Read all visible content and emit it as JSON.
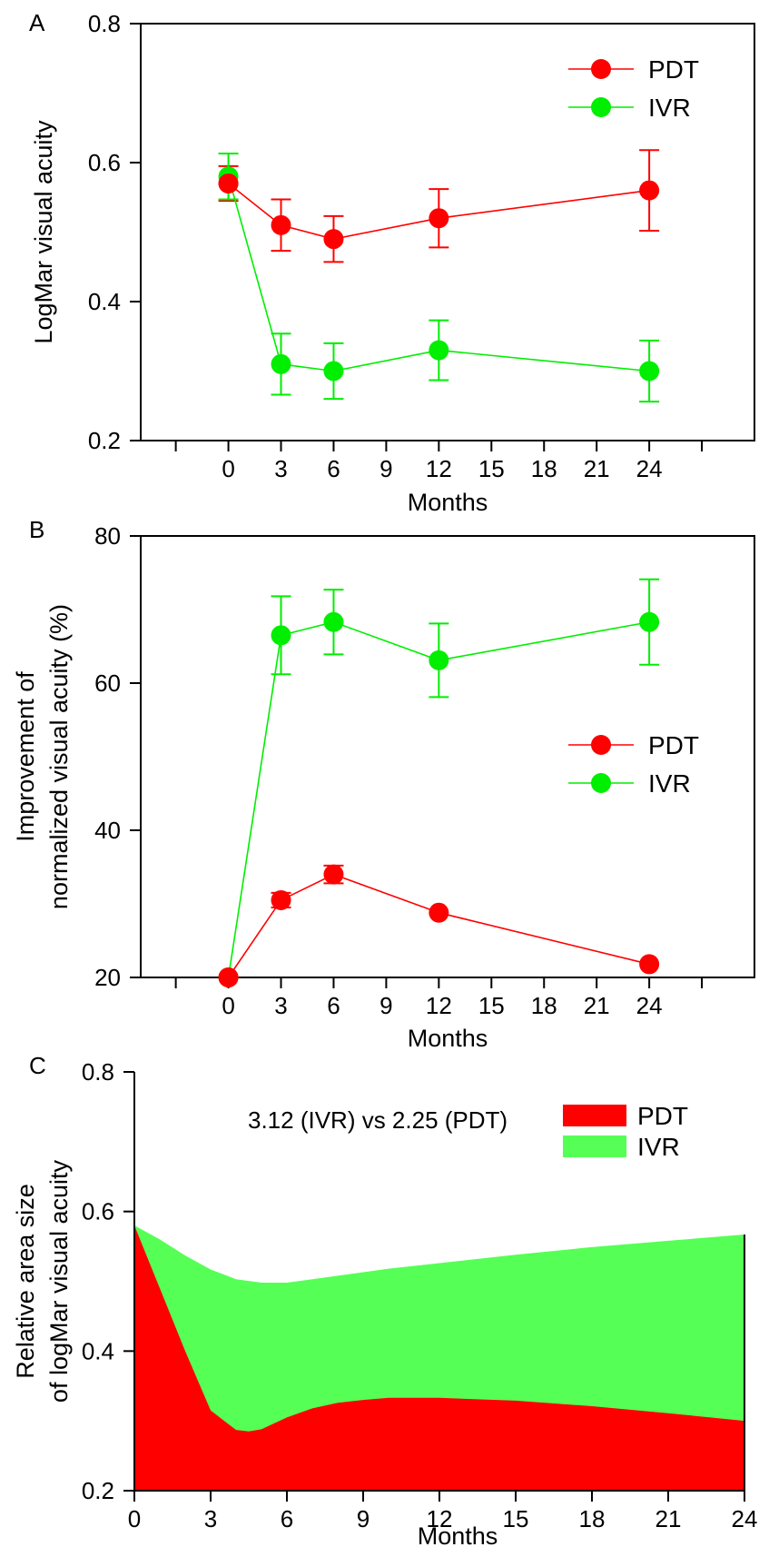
{
  "chart_data": [
    {
      "panel": "A",
      "type": "line",
      "xlabel": "Months",
      "ylabel": "LogMar visual acuity",
      "xlim": [
        -5,
        30
      ],
      "ylim": [
        0.2,
        0.8
      ],
      "xticks": [
        0,
        3,
        6,
        9,
        12,
        15,
        18,
        21,
        24
      ],
      "yticks": [
        0.2,
        0.4,
        0.6,
        0.8
      ],
      "ytick_labels": [
        "0.2",
        "0.4",
        "0.6",
        "0.8"
      ],
      "legend_position": "top-right",
      "series": [
        {
          "name": "PDT",
          "color": "#ff0000",
          "x": [
            0,
            3,
            6,
            12,
            24
          ],
          "y": [
            0.57,
            0.51,
            0.49,
            0.52,
            0.56
          ],
          "err": [
            0.025,
            0.037,
            0.033,
            0.042,
            0.058
          ]
        },
        {
          "name": "IVR",
          "color": "#00ee00",
          "x": [
            0,
            3,
            6,
            12,
            24
          ],
          "y": [
            0.58,
            0.31,
            0.3,
            0.33,
            0.3
          ],
          "err": [
            0.033,
            0.044,
            0.04,
            0.043,
            0.044
          ]
        }
      ]
    },
    {
      "panel": "B",
      "type": "line",
      "xlabel": "Months",
      "ylabel": [
        "Improvement of",
        "normalized visual acuity (%)"
      ],
      "xlim": [
        -5,
        30
      ],
      "ylim": [
        20,
        80
      ],
      "xticks": [
        0,
        3,
        6,
        9,
        12,
        15,
        18,
        21,
        24
      ],
      "yticks": [
        20,
        40,
        60,
        80
      ],
      "ytick_labels": [
        "20",
        "40",
        "60",
        "80"
      ],
      "legend_position": "center-right",
      "series": [
        {
          "name": "PDT",
          "color": "#ff0000",
          "x": [
            0,
            3,
            6,
            12,
            24
          ],
          "y": [
            20.0,
            30.5,
            34.0,
            28.8,
            21.8
          ],
          "err": [
            0,
            1.0,
            1.2,
            0,
            0
          ]
        },
        {
          "name": "IVR",
          "color": "#00ee00",
          "x": [
            0,
            3,
            6,
            12,
            24
          ],
          "y": [
            20.0,
            66.5,
            68.3,
            63.1,
            68.3
          ],
          "err": [
            0,
            5.3,
            4.4,
            5.0,
            5.8
          ]
        }
      ]
    },
    {
      "panel": "C",
      "type": "area",
      "xlabel": "Months",
      "ylabel": [
        "Relative area size",
        "of logMar visual acuity"
      ],
      "xlim": [
        0,
        24
      ],
      "ylim": [
        0.2,
        0.8
      ],
      "xticks": [
        0,
        3,
        6,
        9,
        12,
        15,
        18,
        21,
        24
      ],
      "yticks": [
        0.2,
        0.4,
        0.6,
        0.8
      ],
      "ytick_labels": [
        "0.2",
        "0.4",
        "0.6",
        "0.8"
      ],
      "legend_position": "top-right",
      "annotation": "3.12 (IVR) vs 2.25 (PDT)",
      "series": [
        {
          "name": "PDT",
          "color": "#ff0000",
          "x": [
            0,
            1,
            2,
            3,
            4,
            4.5,
            5,
            6,
            7,
            8,
            9,
            10,
            12,
            15,
            18,
            21,
            24
          ],
          "y": [
            0.58,
            0.49,
            0.4,
            0.315,
            0.287,
            0.285,
            0.288,
            0.305,
            0.318,
            0.326,
            0.33,
            0.333,
            0.333,
            0.329,
            0.321,
            0.311,
            0.3
          ]
        },
        {
          "name": "IVR",
          "color": "#55ff55",
          "x": [
            0,
            1,
            2,
            3,
            4,
            5,
            6,
            7,
            8,
            9,
            10,
            12,
            15,
            18,
            21,
            24
          ],
          "y": [
            0.58,
            0.56,
            0.537,
            0.517,
            0.503,
            0.498,
            0.498,
            0.503,
            0.508,
            0.513,
            0.518,
            0.526,
            0.538,
            0.549,
            0.558,
            0.567
          ]
        }
      ]
    }
  ]
}
